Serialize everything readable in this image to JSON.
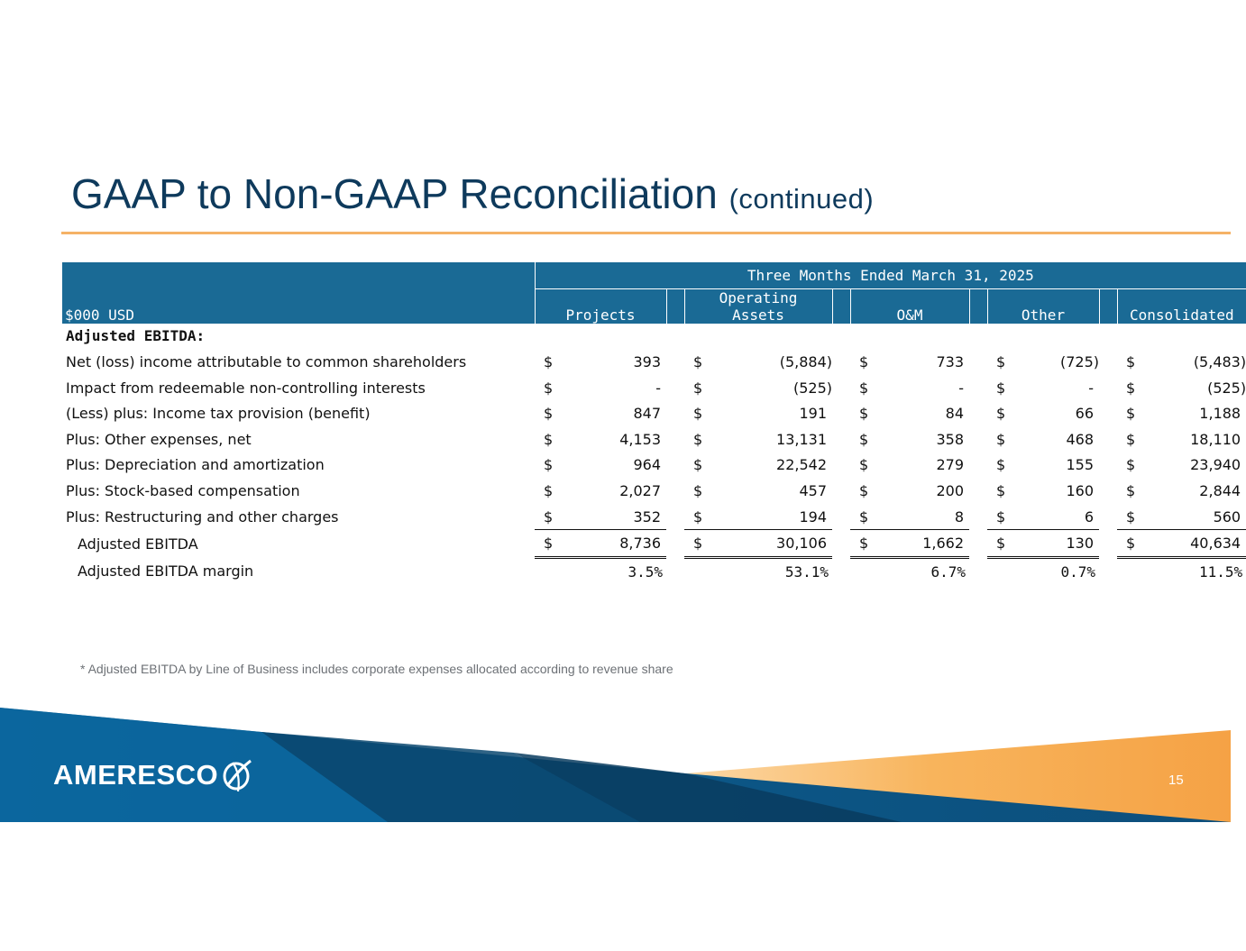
{
  "slide": {
    "title": "GAAP to Non-GAAP Reconciliation",
    "title_suffix": "(continued)",
    "page_number": "15",
    "footnote": "* Adjusted EBITDA by Line of Business includes corporate expenses allocated according to revenue share",
    "logo_text": "AMERESCO",
    "colors": {
      "title": "#0e3a5c",
      "header": "#1a6a95",
      "rule": "#f5b266",
      "banner_blue": "#0a5f93",
      "banner_orange": "#f8a64a"
    }
  },
  "table": {
    "unit_label": "$000 USD",
    "period": "Three Months Ended March 31, 2025",
    "columns": [
      "Projects",
      "Operating Assets",
      "O&M",
      "Other",
      "Consolidated"
    ],
    "column_lines": [
      [
        "Projects"
      ],
      [
        "Operating",
        "Assets"
      ],
      [
        "O&M"
      ],
      [
        "Other"
      ],
      [
        "Consolidated"
      ]
    ],
    "section_label": "Adjusted EBITDA:",
    "rows": [
      {
        "label": "Net (loss) income attributable to common shareholders",
        "currency": "$",
        "values": [
          "393",
          "(5,884)",
          "733",
          "(725)",
          "(5,483)"
        ]
      },
      {
        "label": "Impact from redeemable non-controlling interests",
        "currency": "$",
        "values": [
          "-",
          "(525)",
          "-",
          "-",
          "(525)"
        ]
      },
      {
        "label": "(Less) plus: Income tax provision (benefit)",
        "currency": "$",
        "values": [
          "847",
          "191",
          "84",
          "66",
          "1,188"
        ]
      },
      {
        "label": "Plus: Other expenses, net",
        "currency": "$",
        "values": [
          "4,153",
          "13,131",
          "358",
          "468",
          "18,110"
        ]
      },
      {
        "label": "Plus: Depreciation and amortization",
        "currency": "$",
        "values": [
          "964",
          "22,542",
          "279",
          "155",
          "23,940"
        ]
      },
      {
        "label": "Plus: Stock-based compensation",
        "currency": "$",
        "values": [
          "2,027",
          "457",
          "200",
          "160",
          "2,844"
        ]
      },
      {
        "label": "Plus: Restructuring and other charges",
        "currency": "$",
        "values": [
          "352",
          "194",
          "8",
          "6",
          "560"
        ]
      }
    ],
    "total": {
      "label": "Adjusted EBITDA",
      "currency": "$",
      "values": [
        "8,736",
        "30,106",
        "1,662",
        "130",
        "40,634"
      ]
    },
    "margin": {
      "label": "Adjusted EBITDA margin",
      "values": [
        "3.5%",
        "53.1%",
        "6.7%",
        "0.7%",
        "11.5%"
      ]
    }
  }
}
